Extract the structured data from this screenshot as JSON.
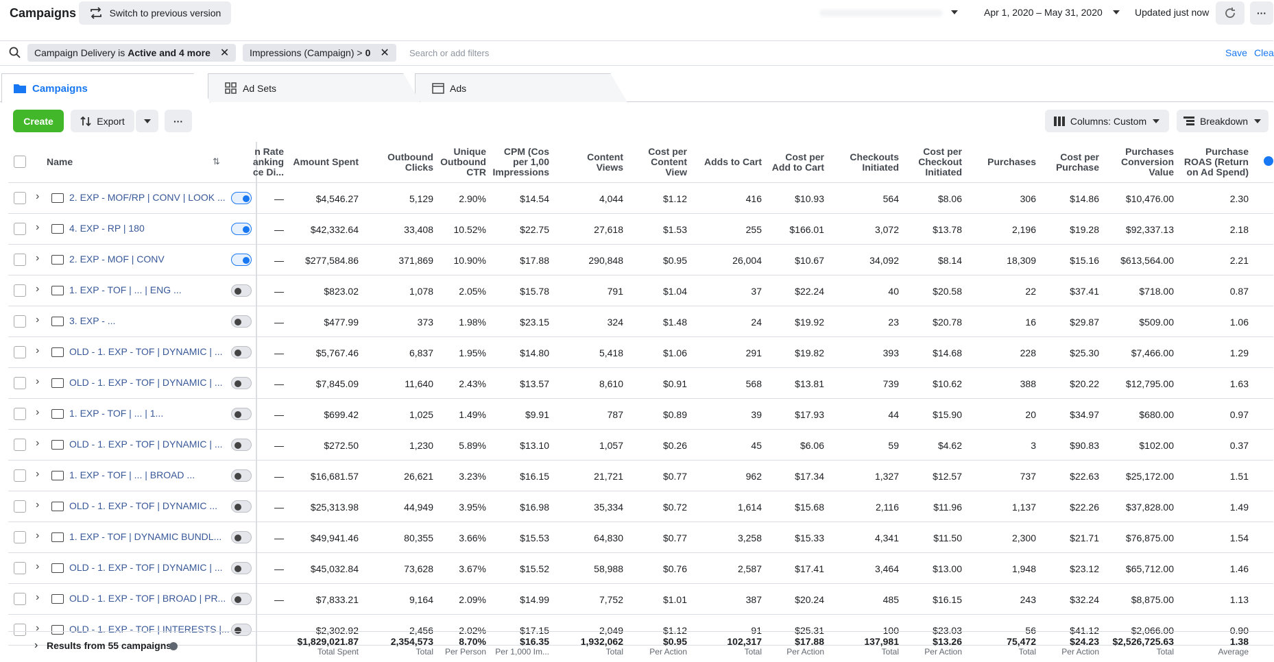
{
  "header": {
    "title": "Campaigns",
    "switch": "Switch to previous version",
    "date_range": "Apr 1, 2020 – May 31, 2020",
    "updated": "Updated just now"
  },
  "filters": {
    "chips": [
      {
        "label": "Campaign Delivery is",
        "value": "Active and 4 more"
      },
      {
        "label": "Impressions (Campaign) >",
        "value": "0"
      }
    ],
    "placeholder": "Search or add filters",
    "save": "Save",
    "clear": "Clea"
  },
  "tabs": [
    "Campaigns",
    "Ad Sets",
    "Ads"
  ],
  "toolbar": {
    "create": "Create",
    "export": "Export",
    "columns": "Columns: Custom",
    "breakdown": "Breakdown"
  },
  "table": {
    "columns": [
      "Name",
      "n Rate\nanking\nce Di...",
      "Amount Spent",
      "Outbound\nClicks",
      "Unique\nOutbound\nCTR",
      "CPM (Cos\nper 1,00\nImpressions",
      "Content\nViews",
      "Cost per\nContent\nView",
      "Adds to Cart",
      "Cost per\nAdd to Cart",
      "Checkouts\nInitiated",
      "Cost per\nCheckout\nInitiated",
      "Purchases",
      "Cost per\nPurchase",
      "Purchases\nConversion\nValue",
      "Purchase\nROAS (Return\non Ad Spend)"
    ],
    "rows": [
      {
        "name": "2. EXP - MOF/RP | CONV | LOOK ...",
        "active": true,
        "cells": [
          "—",
          "$4,546.27",
          "5,129",
          "2.90%",
          "$14.54",
          "4,044",
          "$1.12",
          "416",
          "$10.93",
          "564",
          "$8.06",
          "306",
          "$14.86",
          "$10,476.00",
          "2.30"
        ]
      },
      {
        "name": "4. EXP - RP | 180",
        "active": true,
        "cells": [
          "—",
          "$42,332.64",
          "33,408",
          "10.52%",
          "$22.75",
          "27,618",
          "$1.53",
          "255",
          "$166.01",
          "3,072",
          "$13.78",
          "2,196",
          "$19.28",
          "$92,337.13",
          "2.18"
        ]
      },
      {
        "name": "2. EXP - MOF | CONV",
        "active": true,
        "cells": [
          "—",
          "$277,584.86",
          "371,869",
          "10.90%",
          "$17.88",
          "290,848",
          "$0.95",
          "26,004",
          "$10.67",
          "34,092",
          "$8.14",
          "18,309",
          "$15.16",
          "$613,564.00",
          "2.21"
        ]
      },
      {
        "name": "1. EXP - TOF | ... | ENG ...",
        "active": false,
        "cells": [
          "—",
          "$823.02",
          "1,078",
          "2.05%",
          "$15.78",
          "791",
          "$1.04",
          "37",
          "$22.24",
          "40",
          "$20.58",
          "22",
          "$37.41",
          "$718.00",
          "0.87"
        ]
      },
      {
        "name": "3. EXP - ...",
        "active": false,
        "cells": [
          "—",
          "$477.99",
          "373",
          "1.98%",
          "$23.15",
          "324",
          "$1.48",
          "24",
          "$19.92",
          "23",
          "$20.78",
          "16",
          "$29.87",
          "$509.00",
          "1.06"
        ]
      },
      {
        "name": "OLD - 1. EXP - TOF | DYNAMIC | ...",
        "active": false,
        "cells": [
          "—",
          "$5,767.46",
          "6,837",
          "1.95%",
          "$14.80",
          "5,418",
          "$1.06",
          "291",
          "$19.82",
          "393",
          "$14.68",
          "228",
          "$25.30",
          "$7,466.00",
          "1.29"
        ]
      },
      {
        "name": "OLD - 1. EXP - TOF | DYNAMIC | ...",
        "active": false,
        "cells": [
          "—",
          "$7,845.09",
          "11,640",
          "2.43%",
          "$13.57",
          "8,610",
          "$0.91",
          "568",
          "$13.81",
          "739",
          "$10.62",
          "388",
          "$20.22",
          "$12,795.00",
          "1.63"
        ]
      },
      {
        "name": "1. EXP - TOF | ... | 1...",
        "active": false,
        "cells": [
          "—",
          "$699.42",
          "1,025",
          "1.49%",
          "$9.91",
          "787",
          "$0.89",
          "39",
          "$17.93",
          "44",
          "$15.90",
          "20",
          "$34.97",
          "$680.00",
          "0.97"
        ]
      },
      {
        "name": "OLD - 1. EXP - TOF | DYNAMIC | ...",
        "active": false,
        "cells": [
          "—",
          "$272.50",
          "1,230",
          "5.89%",
          "$13.10",
          "1,057",
          "$0.26",
          "45",
          "$6.06",
          "59",
          "$4.62",
          "3",
          "$90.83",
          "$102.00",
          "0.37"
        ]
      },
      {
        "name": "1. EXP - TOF | ... | BROAD ...",
        "active": false,
        "cells": [
          "—",
          "$16,681.57",
          "26,621",
          "3.23%",
          "$16.15",
          "21,721",
          "$0.77",
          "962",
          "$17.34",
          "1,327",
          "$12.57",
          "737",
          "$22.63",
          "$25,172.00",
          "1.51"
        ]
      },
      {
        "name": "OLD - 1. EXP - TOF | DYNAMIC ...",
        "active": false,
        "cells": [
          "—",
          "$25,313.98",
          "44,949",
          "3.95%",
          "$16.98",
          "35,334",
          "$0.72",
          "1,614",
          "$15.68",
          "2,116",
          "$11.96",
          "1,137",
          "$22.26",
          "$37,828.00",
          "1.49"
        ]
      },
      {
        "name": "1. EXP - TOF | DYNAMIC BUNDL...",
        "active": false,
        "cells": [
          "—",
          "$49,941.46",
          "80,355",
          "3.66%",
          "$15.53",
          "64,830",
          "$0.77",
          "3,258",
          "$15.33",
          "4,341",
          "$11.50",
          "2,300",
          "$21.71",
          "$76,875.00",
          "1.54"
        ]
      },
      {
        "name": "OLD - 1. EXP - TOF | DYNAMIC | ...",
        "active": false,
        "cells": [
          "—",
          "$45,032.84",
          "73,628",
          "3.67%",
          "$15.52",
          "58,988",
          "$0.76",
          "2,587",
          "$17.41",
          "3,464",
          "$13.00",
          "1,948",
          "$23.12",
          "$65,712.00",
          "1.46"
        ]
      },
      {
        "name": "OLD - 1. EXP - TOF | BROAD | PR...",
        "active": false,
        "cells": [
          "—",
          "$7,833.21",
          "9,164",
          "2.09%",
          "$14.99",
          "7,752",
          "$1.01",
          "387",
          "$20.24",
          "485",
          "$16.15",
          "243",
          "$32.24",
          "$8,875.00",
          "1.13"
        ]
      },
      {
        "name": "OLD - 1. EXP - TOF | INTERESTS |...",
        "active": false,
        "cells": [
          "—",
          "$2,302.92",
          "2,456",
          "2.02%",
          "$17.15",
          "2,049",
          "$1.12",
          "91",
          "$25.31",
          "100",
          "$23.03",
          "56",
          "$41.12",
          "$2,066.00",
          "0.90"
        ]
      }
    ],
    "footer": {
      "label": "Results from 55 campaigns",
      "totals": [
        {
          "value": "$1,829,021.87",
          "caption": "Total Spent"
        },
        {
          "value": "2,354,573",
          "caption": "Total"
        },
        {
          "value": "8.70%",
          "caption": "Per Person"
        },
        {
          "value": "$16.35",
          "caption": "Per 1,000 Im..."
        },
        {
          "value": "1,932,062",
          "caption": "Total"
        },
        {
          "value": "$0.95",
          "caption": "Per Action"
        },
        {
          "value": "102,317",
          "caption": "Total"
        },
        {
          "value": "$17.88",
          "caption": "Per Action"
        },
        {
          "value": "137,981",
          "caption": "Total"
        },
        {
          "value": "$13.26",
          "caption": "Per Action"
        },
        {
          "value": "75,472",
          "caption": "Total"
        },
        {
          "value": "$24.23",
          "caption": "Per Action"
        },
        {
          "value": "$2,526,725.63",
          "caption": "Total"
        },
        {
          "value": "1.38",
          "caption": "Average"
        }
      ]
    }
  }
}
